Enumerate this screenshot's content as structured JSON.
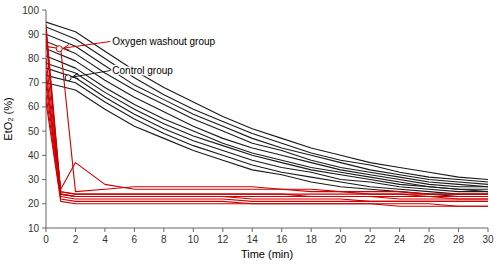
{
  "chart_data": {
    "type": "line",
    "xlabel": "Time (min)",
    "ylabel": "EtO₂ (%)",
    "xlim": [
      0,
      30
    ],
    "ylim": [
      10,
      100
    ],
    "xticks": [
      0,
      2,
      4,
      6,
      8,
      10,
      12,
      14,
      16,
      18,
      20,
      22,
      24,
      26,
      28,
      30
    ],
    "yticks": [
      10,
      20,
      30,
      40,
      50,
      60,
      70,
      80,
      90,
      100
    ],
    "grid": false,
    "annotations": [
      {
        "text": "Oxygen washout group",
        "x": 0.9,
        "y": 84,
        "text_x": 4.5,
        "text_y": 87,
        "color": "#cc0000"
      },
      {
        "text": "Control group",
        "x": 1.5,
        "y": 72,
        "text_x": 4.5,
        "text_y": 75,
        "color": "#1a1a1a"
      }
    ],
    "series": [
      {
        "color": "#1a1a1a",
        "x": [
          0,
          2,
          4,
          6,
          8,
          10,
          12,
          14,
          16,
          18,
          20,
          22,
          24,
          26,
          28,
          30
        ],
        "values": [
          95,
          91,
          83,
          75,
          68,
          62,
          56,
          51,
          47,
          43,
          40,
          37,
          35,
          33,
          31,
          30
        ]
      },
      {
        "color": "#1a1a1a",
        "x": [
          0,
          2,
          4,
          6,
          8,
          10,
          12,
          14,
          16,
          18,
          20,
          22,
          24,
          26,
          28,
          30
        ],
        "values": [
          93,
          88,
          80,
          72,
          65,
          59,
          54,
          49,
          45,
          41,
          38,
          36,
          33,
          31,
          30,
          29
        ]
      },
      {
        "color": "#1a1a1a",
        "x": [
          0,
          2,
          4,
          6,
          8,
          10,
          12,
          14,
          16,
          18,
          20,
          22,
          24,
          26,
          28,
          30
        ],
        "values": [
          90,
          85,
          77,
          69,
          63,
          57,
          52,
          47,
          43,
          40,
          37,
          34,
          32,
          30,
          29,
          28
        ]
      },
      {
        "color": "#1a1a1a",
        "x": [
          0,
          2,
          4,
          6,
          8,
          10,
          12,
          14,
          16,
          18,
          20,
          22,
          24,
          26,
          28,
          30
        ],
        "values": [
          87,
          82,
          74,
          67,
          61,
          55,
          50,
          45,
          42,
          38,
          35,
          33,
          31,
          29,
          28,
          27
        ]
      },
      {
        "color": "#1a1a1a",
        "x": [
          0,
          2,
          4,
          6,
          8,
          10,
          12,
          14,
          16,
          18,
          20,
          22,
          24,
          26,
          28,
          30
        ],
        "values": [
          84,
          79,
          71,
          64,
          58,
          52,
          47,
          43,
          40,
          37,
          34,
          32,
          30,
          28,
          27,
          27
        ]
      },
      {
        "color": "#1a1a1a",
        "x": [
          0,
          2,
          4,
          6,
          8,
          10,
          12,
          14,
          16,
          18,
          20,
          22,
          24,
          26,
          28,
          30
        ],
        "values": [
          81,
          76,
          68,
          61,
          55,
          50,
          45,
          41,
          38,
          35,
          33,
          31,
          29,
          27,
          26,
          26
        ]
      },
      {
        "color": "#1a1a1a",
        "x": [
          0,
          2,
          4,
          6,
          8,
          10,
          12,
          14,
          16,
          18,
          20,
          22,
          24,
          26,
          28,
          30
        ],
        "values": [
          78,
          74,
          66,
          59,
          53,
          48,
          44,
          40,
          37,
          34,
          32,
          30,
          28,
          27,
          26,
          25
        ]
      },
      {
        "color": "#1a1a1a",
        "x": [
          0,
          2,
          4,
          6,
          8,
          10,
          12,
          14,
          16,
          18,
          20,
          22,
          24,
          26,
          28,
          30
        ],
        "values": [
          76,
          72,
          64,
          57,
          51,
          46,
          42,
          38,
          35,
          33,
          30,
          29,
          27,
          26,
          25,
          25
        ]
      },
      {
        "color": "#1a1a1a",
        "x": [
          0,
          2,
          4,
          6,
          8,
          10,
          12,
          14,
          16,
          18,
          20,
          22,
          24,
          26,
          28,
          30
        ],
        "values": [
          73,
          70,
          62,
          55,
          49,
          44,
          40,
          36,
          33,
          31,
          29,
          27,
          26,
          25,
          24,
          24
        ]
      },
      {
        "color": "#1a1a1a",
        "x": [
          0,
          2,
          4,
          6,
          8,
          10,
          12,
          14,
          16,
          18,
          20,
          22,
          24,
          26,
          28,
          30
        ],
        "values": [
          70,
          67,
          59,
          52,
          47,
          42,
          38,
          34,
          32,
          29,
          27,
          26,
          25,
          24,
          23,
          23
        ]
      },
      {
        "color": "#cc0000",
        "x": [
          0,
          1,
          2,
          4,
          6,
          8,
          10,
          12,
          14,
          16,
          18,
          20,
          22,
          24,
          26,
          28,
          30
        ],
        "values": [
          94,
          25,
          24,
          24,
          24,
          24,
          24,
          24,
          24,
          24,
          24,
          24,
          24,
          24,
          24,
          24,
          24
        ]
      },
      {
        "color": "#cc0000",
        "x": [
          0,
          1,
          2,
          4,
          6,
          8,
          10,
          12,
          14,
          16,
          18,
          20,
          22,
          24,
          26,
          28,
          30
        ],
        "values": [
          91,
          24,
          23,
          23,
          23,
          23,
          23,
          23,
          23,
          23,
          23,
          23,
          23,
          23,
          23,
          23,
          23
        ]
      },
      {
        "color": "#cc0000",
        "x": [
          0,
          1,
          2,
          4,
          6,
          8,
          10,
          12,
          14,
          16,
          18,
          20,
          22,
          24,
          26,
          28,
          30
        ],
        "values": [
          88,
          24,
          23,
          23,
          23,
          23,
          23,
          23,
          23,
          23,
          23,
          23,
          23,
          23,
          23,
          22,
          22
        ]
      },
      {
        "color": "#cc0000",
        "x": [
          0,
          1,
          2,
          4,
          6,
          8,
          10,
          12,
          14,
          16,
          18,
          20,
          22,
          24,
          26,
          28,
          30
        ],
        "values": [
          85,
          84,
          25,
          26,
          27,
          27,
          27,
          27,
          27,
          26,
          26,
          25,
          25,
          25,
          24,
          24,
          24
        ]
      },
      {
        "color": "#cc0000",
        "x": [
          0,
          1,
          2,
          4,
          6,
          8,
          10,
          12,
          14,
          16,
          18,
          20,
          22,
          24,
          26,
          28,
          30
        ],
        "values": [
          80,
          26,
          37,
          28,
          26,
          26,
          26,
          26,
          26,
          26,
          25,
          25,
          24,
          24,
          23,
          23,
          23
        ]
      },
      {
        "color": "#cc0000",
        "x": [
          0,
          1,
          2,
          4,
          6,
          8,
          10,
          12,
          14,
          16,
          18,
          20,
          22,
          24,
          26,
          28,
          30
        ],
        "values": [
          75,
          25,
          24,
          24,
          24,
          24,
          24,
          24,
          24,
          24,
          23,
          23,
          23,
          22,
          22,
          22,
          22
        ]
      },
      {
        "color": "#cc0000",
        "x": [
          0,
          1,
          2,
          4,
          6,
          8,
          10,
          12,
          14,
          16,
          18,
          20,
          22,
          24,
          26,
          28,
          30
        ],
        "values": [
          72,
          24,
          23,
          23,
          23,
          23,
          23,
          23,
          22,
          22,
          22,
          22,
          21,
          21,
          21,
          21,
          21
        ]
      },
      {
        "color": "#cc0000",
        "x": [
          0,
          1,
          2,
          4,
          6,
          8,
          10,
          12,
          14,
          16,
          18,
          20,
          22,
          24,
          26,
          28,
          30
        ],
        "values": [
          69,
          23,
          22,
          22,
          22,
          22,
          22,
          22,
          21,
          21,
          21,
          21,
          21,
          21,
          21,
          21,
          21
        ]
      },
      {
        "color": "#cc0000",
        "x": [
          0,
          1,
          2,
          4,
          6,
          8,
          10,
          12,
          14,
          16,
          18,
          20,
          22,
          24,
          26,
          28,
          30
        ],
        "values": [
          65,
          22,
          21,
          21,
          21,
          21,
          21,
          21,
          20,
          20,
          20,
          20,
          20,
          20,
          20,
          19,
          19
        ]
      },
      {
        "color": "#cc0000",
        "x": [
          0,
          1,
          2,
          4,
          6,
          8,
          10,
          12,
          14,
          16,
          18,
          20,
          22,
          24,
          26,
          28,
          30
        ],
        "values": [
          62,
          21,
          20,
          20,
          20,
          20,
          20,
          20,
          20,
          20,
          20,
          20,
          20,
          19,
          19,
          19,
          19
        ]
      }
    ]
  }
}
